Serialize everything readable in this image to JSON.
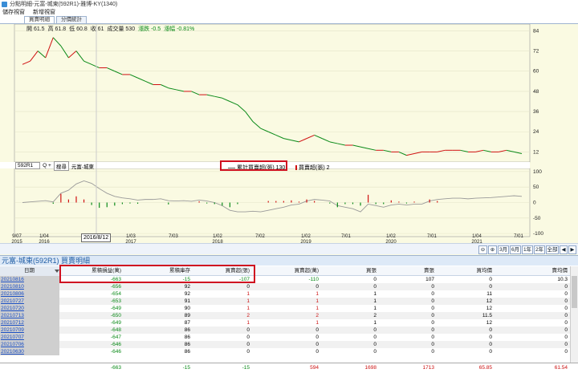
{
  "window_title": "分點明細-元富-城東(592R1)-雅博-KY(1340)",
  "menu": [
    "儲存視窗",
    "新增視窗"
  ],
  "tabs": [
    "買賣明細",
    "分價統計"
  ],
  "ohlc": {
    "open": "開 61.5",
    "high": "高 61.8",
    "low": "低 60.8",
    "close": "收 61",
    "volume": "成交量 530",
    "change": "漲跌 -0.5",
    "pct": "漲幅 -0.81%"
  },
  "price_axis": [
    "84",
    "72",
    "60",
    "48",
    "36",
    "24",
    "12"
  ],
  "sub_axis": [
    "100",
    "50",
    "0",
    "-50",
    "-100"
  ],
  "broker_select": "592R1",
  "zoom_icons": "Q +",
  "query_button": "搜尋",
  "broker_name": "元富-城東",
  "legend": {
    "line": "累計買賣超(張) 130",
    "bar": "買賣超(張) 2"
  },
  "crosshair_date": "2016/8/12",
  "x_axis": [
    {
      "m": "9/07",
      "y": "2015"
    },
    {
      "m": "1/04",
      "y": "2016"
    },
    {
      "m": "",
      "y": ""
    },
    {
      "m": "1/03",
      "y": "2017"
    },
    {
      "m": "7/03",
      "y": ""
    },
    {
      "m": "1/02",
      "y": "2018"
    },
    {
      "m": "7/02",
      "y": ""
    },
    {
      "m": "1/02",
      "y": "2019"
    },
    {
      "m": "7/01",
      "y": ""
    },
    {
      "m": "1/02",
      "y": "2020"
    },
    {
      "m": "7/01",
      "y": ""
    },
    {
      "m": "1/04",
      "y": "2021"
    },
    {
      "m": "7/01",
      "y": ""
    }
  ],
  "range_buttons": [
    "3月",
    "6月",
    "1年",
    "2年",
    "全部"
  ],
  "table_title": "元富-城東(592R1) 買賣明細",
  "headers": [
    "日期",
    "累積損益(萬)",
    "累積庫存",
    "買賣超(張)",
    "買賣超(萬)",
    "買張",
    "賣張",
    "買均價",
    "賣均價"
  ],
  "rows": [
    [
      "20210816",
      "-663",
      "-15",
      "-107",
      "-110",
      "0",
      "107",
      "0",
      "10.3"
    ],
    [
      "20210810",
      "-656",
      "92",
      "0",
      "0",
      "0",
      "0",
      "0",
      "0"
    ],
    [
      "20210806",
      "-654",
      "92",
      "1",
      "1",
      "1",
      "0",
      "11",
      "0"
    ],
    [
      "20210727",
      "-653",
      "91",
      "1",
      "1",
      "1",
      "0",
      "12",
      "0"
    ],
    [
      "20210720",
      "-649",
      "90",
      "1",
      "1",
      "1",
      "0",
      "12",
      "0"
    ],
    [
      "20210713",
      "-650",
      "89",
      "2",
      "2",
      "2",
      "0",
      "11.5",
      "0"
    ],
    [
      "20210712",
      "-649",
      "87",
      "1",
      "1",
      "1",
      "0",
      "12",
      "0"
    ],
    [
      "20210709",
      "-648",
      "86",
      "0",
      "0",
      "0",
      "0",
      "0",
      "0"
    ],
    [
      "20210707",
      "-647",
      "86",
      "0",
      "0",
      "0",
      "0",
      "0",
      "0"
    ],
    [
      "20210706",
      "-646",
      "86",
      "0",
      "0",
      "0",
      "0",
      "0",
      "0"
    ],
    [
      "20210630",
      "-646",
      "86",
      "0",
      "0",
      "0",
      "0",
      "0",
      "0"
    ]
  ],
  "totals": [
    "",
    "-663",
    "-15",
    "-15",
    "594",
    "1698",
    "1713",
    "65.85",
    "61.54"
  ],
  "colors": {
    "price_up": "#d01010",
    "price_down": "#0a8a18",
    "cum_line": "#9a9a9a",
    "highlight": "#d01020",
    "panel_bg": "#fafae2"
  },
  "chart_data": {
    "type": "line",
    "y_price_range": [
      6,
      88
    ],
    "y_sub_range": [
      -110,
      110
    ],
    "price_series": [
      64,
      66,
      72,
      68,
      80,
      75,
      68,
      72,
      66,
      64,
      62,
      62,
      60,
      58,
      58,
      56,
      54,
      52,
      52,
      50,
      49,
      48,
      48,
      46,
      46,
      45,
      44,
      42,
      40,
      36,
      30,
      26,
      24,
      22,
      20,
      19,
      18,
      20,
      22,
      20,
      18,
      17,
      16,
      16,
      15,
      14,
      13,
      13,
      12,
      12,
      10,
      11,
      12,
      12,
      12,
      13,
      13,
      13,
      12,
      12,
      13,
      12,
      12,
      13,
      12,
      11
    ],
    "cum_series": [
      0,
      2,
      4,
      6,
      2,
      30,
      40,
      60,
      70,
      62,
      45,
      30,
      20,
      15,
      12,
      8,
      10,
      10,
      12,
      6,
      5,
      6,
      4,
      8,
      5,
      0,
      -10,
      -25,
      -30,
      -30,
      -28,
      -30,
      -25,
      -20,
      -15,
      -8,
      -5,
      5,
      10,
      8,
      5,
      -10,
      -15,
      -20,
      -30,
      -5,
      -10,
      -15,
      -8,
      -5,
      -8,
      -5,
      -5,
      5,
      10,
      12,
      14,
      14,
      12,
      14,
      15,
      16,
      18,
      20,
      22,
      20
    ]
  }
}
